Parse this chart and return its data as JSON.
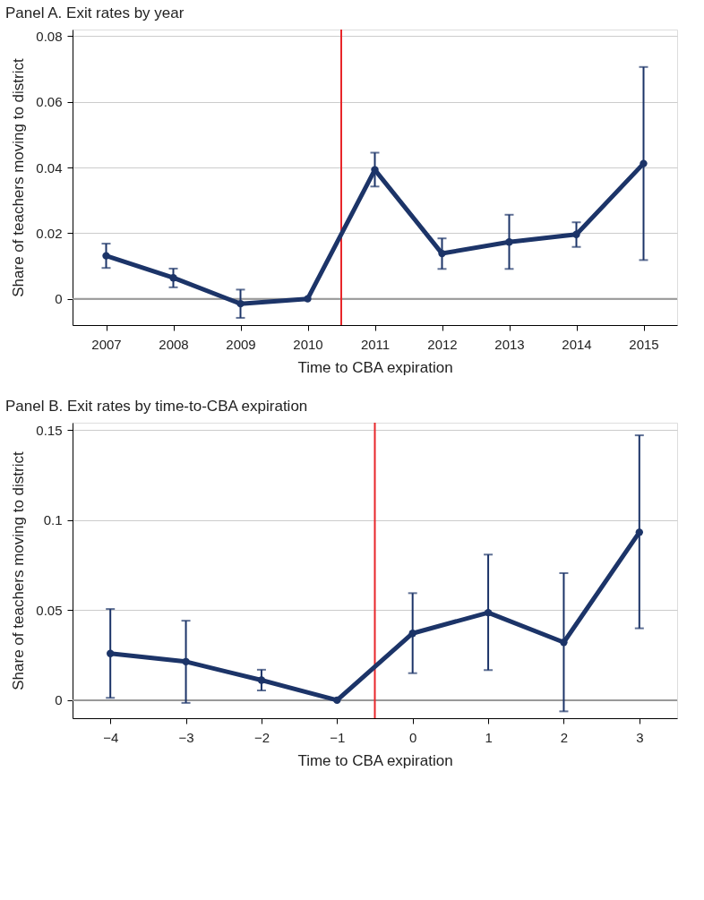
{
  "chart_data": [
    {
      "type": "line",
      "title": "Panel A. Exit rates by year",
      "xlabel": "Time to CBA expiration",
      "ylabel": "Share of teachers moving to district",
      "x": [
        2007,
        2008,
        2009,
        2010,
        2011,
        2012,
        2013,
        2014,
        2015
      ],
      "series": [
        {
          "color": "#1c3468",
          "values": [
            0.0131,
            0.0064,
            -0.0015,
            0,
            0.0393,
            0.0138,
            0.0173,
            0.0196,
            0.0412
          ],
          "errors": [
            [
              0.0094,
              0.0168
            ],
            [
              0.0035,
              0.0092
            ],
            [
              -0.0058,
              0.0028
            ],
            null,
            [
              0.0342,
              0.0445
            ],
            [
              0.0091,
              0.0184
            ],
            [
              0.0091,
              0.0256
            ],
            [
              0.0158,
              0.0233
            ],
            [
              0.0118,
              0.0706
            ]
          ]
        }
      ],
      "xlim": [
        2006.5,
        2015.5
      ],
      "xticks": [
        2007,
        2008,
        2009,
        2010,
        2011,
        2012,
        2013,
        2014,
        2015
      ],
      "ylim": [
        -0.008,
        0.082
      ],
      "yticks": [
        0,
        0.02,
        0.04,
        0.06,
        0.08
      ],
      "ref_lines": [
        {
          "axis": "y",
          "value": 0,
          "color": "#999999"
        },
        {
          "axis": "x",
          "value": 2010.5,
          "color": "#e8262a"
        }
      ],
      "grid": "y",
      "marker": "circle",
      "line_style": "solid"
    },
    {
      "type": "line",
      "title": "Panel B. Exit rates by time-to-CBA expiration",
      "xlabel": "Time to CBA expiration",
      "ylabel": "Share of teachers moving to district",
      "x": [
        -4,
        -3,
        -2,
        -1,
        0,
        1,
        2,
        3
      ],
      "series": [
        {
          "color": "#1c3468",
          "values": [
            0.0259,
            0.0214,
            0.0111,
            0,
            0.0371,
            0.0486,
            0.0321,
            0.0932
          ],
          "errors": [
            [
              0.0013,
              0.0506
            ],
            [
              -0.0015,
              0.0441
            ],
            [
              0.0054,
              0.0169
            ],
            null,
            [
              0.015,
              0.0594
            ],
            [
              0.0167,
              0.0808
            ],
            [
              -0.0062,
              0.0705
            ],
            [
              0.0399,
              0.147
            ]
          ]
        }
      ],
      "xlim": [
        -4.5,
        3.5
      ],
      "xticks": [
        {
          "value": -4,
          "label": "−4"
        },
        {
          "value": -3,
          "label": "−3"
        },
        {
          "value": -2,
          "label": "−2"
        },
        {
          "value": -1,
          "label": "−1"
        },
        0,
        1,
        2,
        3
      ],
      "ylim": [
        -0.01,
        0.154
      ],
      "yticks": [
        0,
        0.05,
        0.1,
        0.15
      ],
      "ref_lines": [
        {
          "axis": "y",
          "value": 0,
          "color": "#999999"
        },
        {
          "axis": "x",
          "value": -0.5,
          "color": "#e8262a"
        }
      ],
      "grid": "y",
      "marker": "circle",
      "line_style": "solid"
    }
  ]
}
